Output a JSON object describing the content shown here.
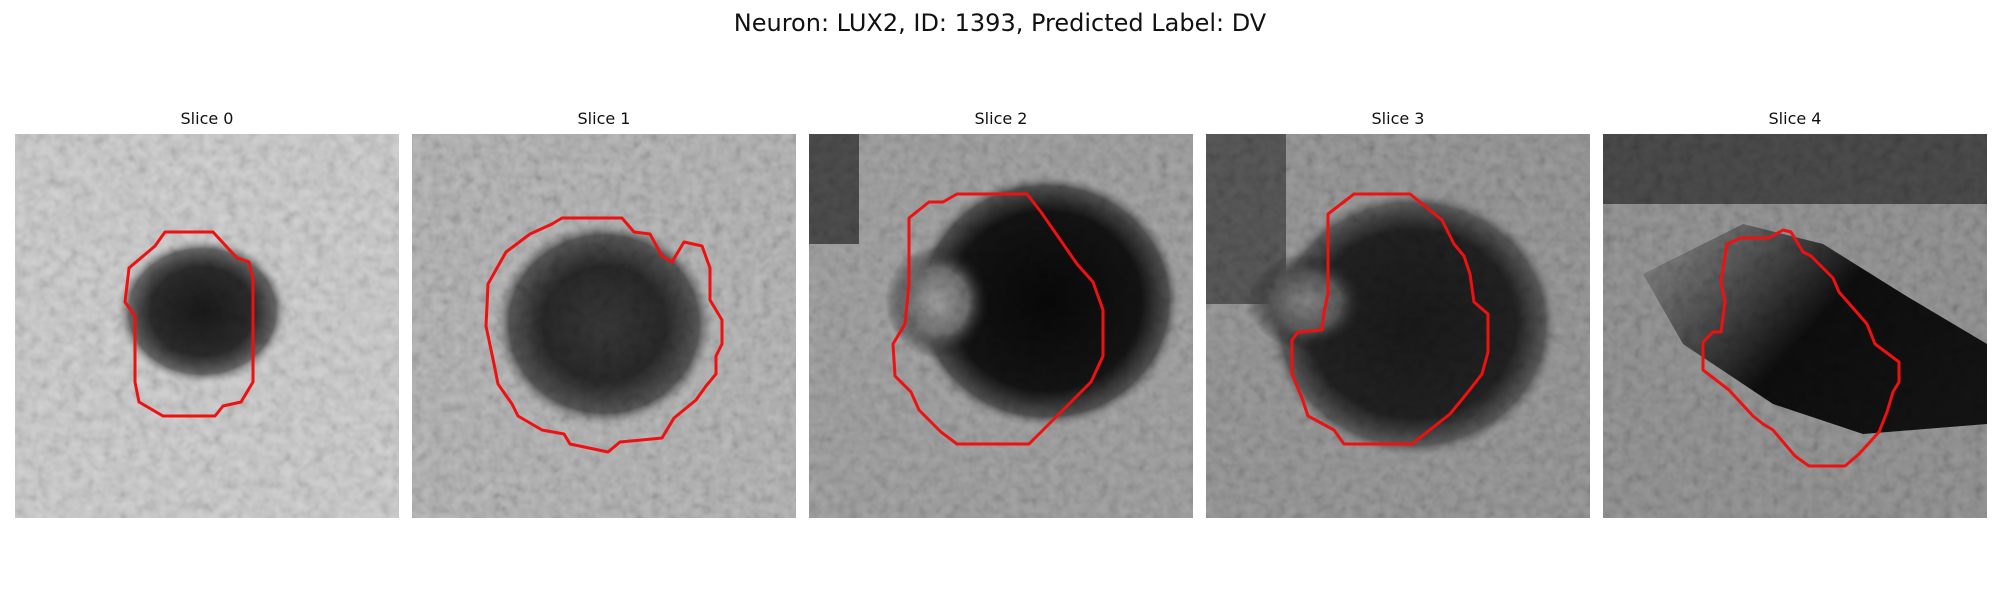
{
  "title": "Neuron: LUX2, ID: 1393, Predicted Label: DV",
  "colors": {
    "contour": "#ee1111",
    "background": "#ffffff"
  },
  "panels": [
    {
      "label": "Slice 0"
    },
    {
      "label": "Slice 1"
    },
    {
      "label": "Slice 2"
    },
    {
      "label": "Slice 3"
    },
    {
      "label": "Slice 4"
    }
  ]
}
